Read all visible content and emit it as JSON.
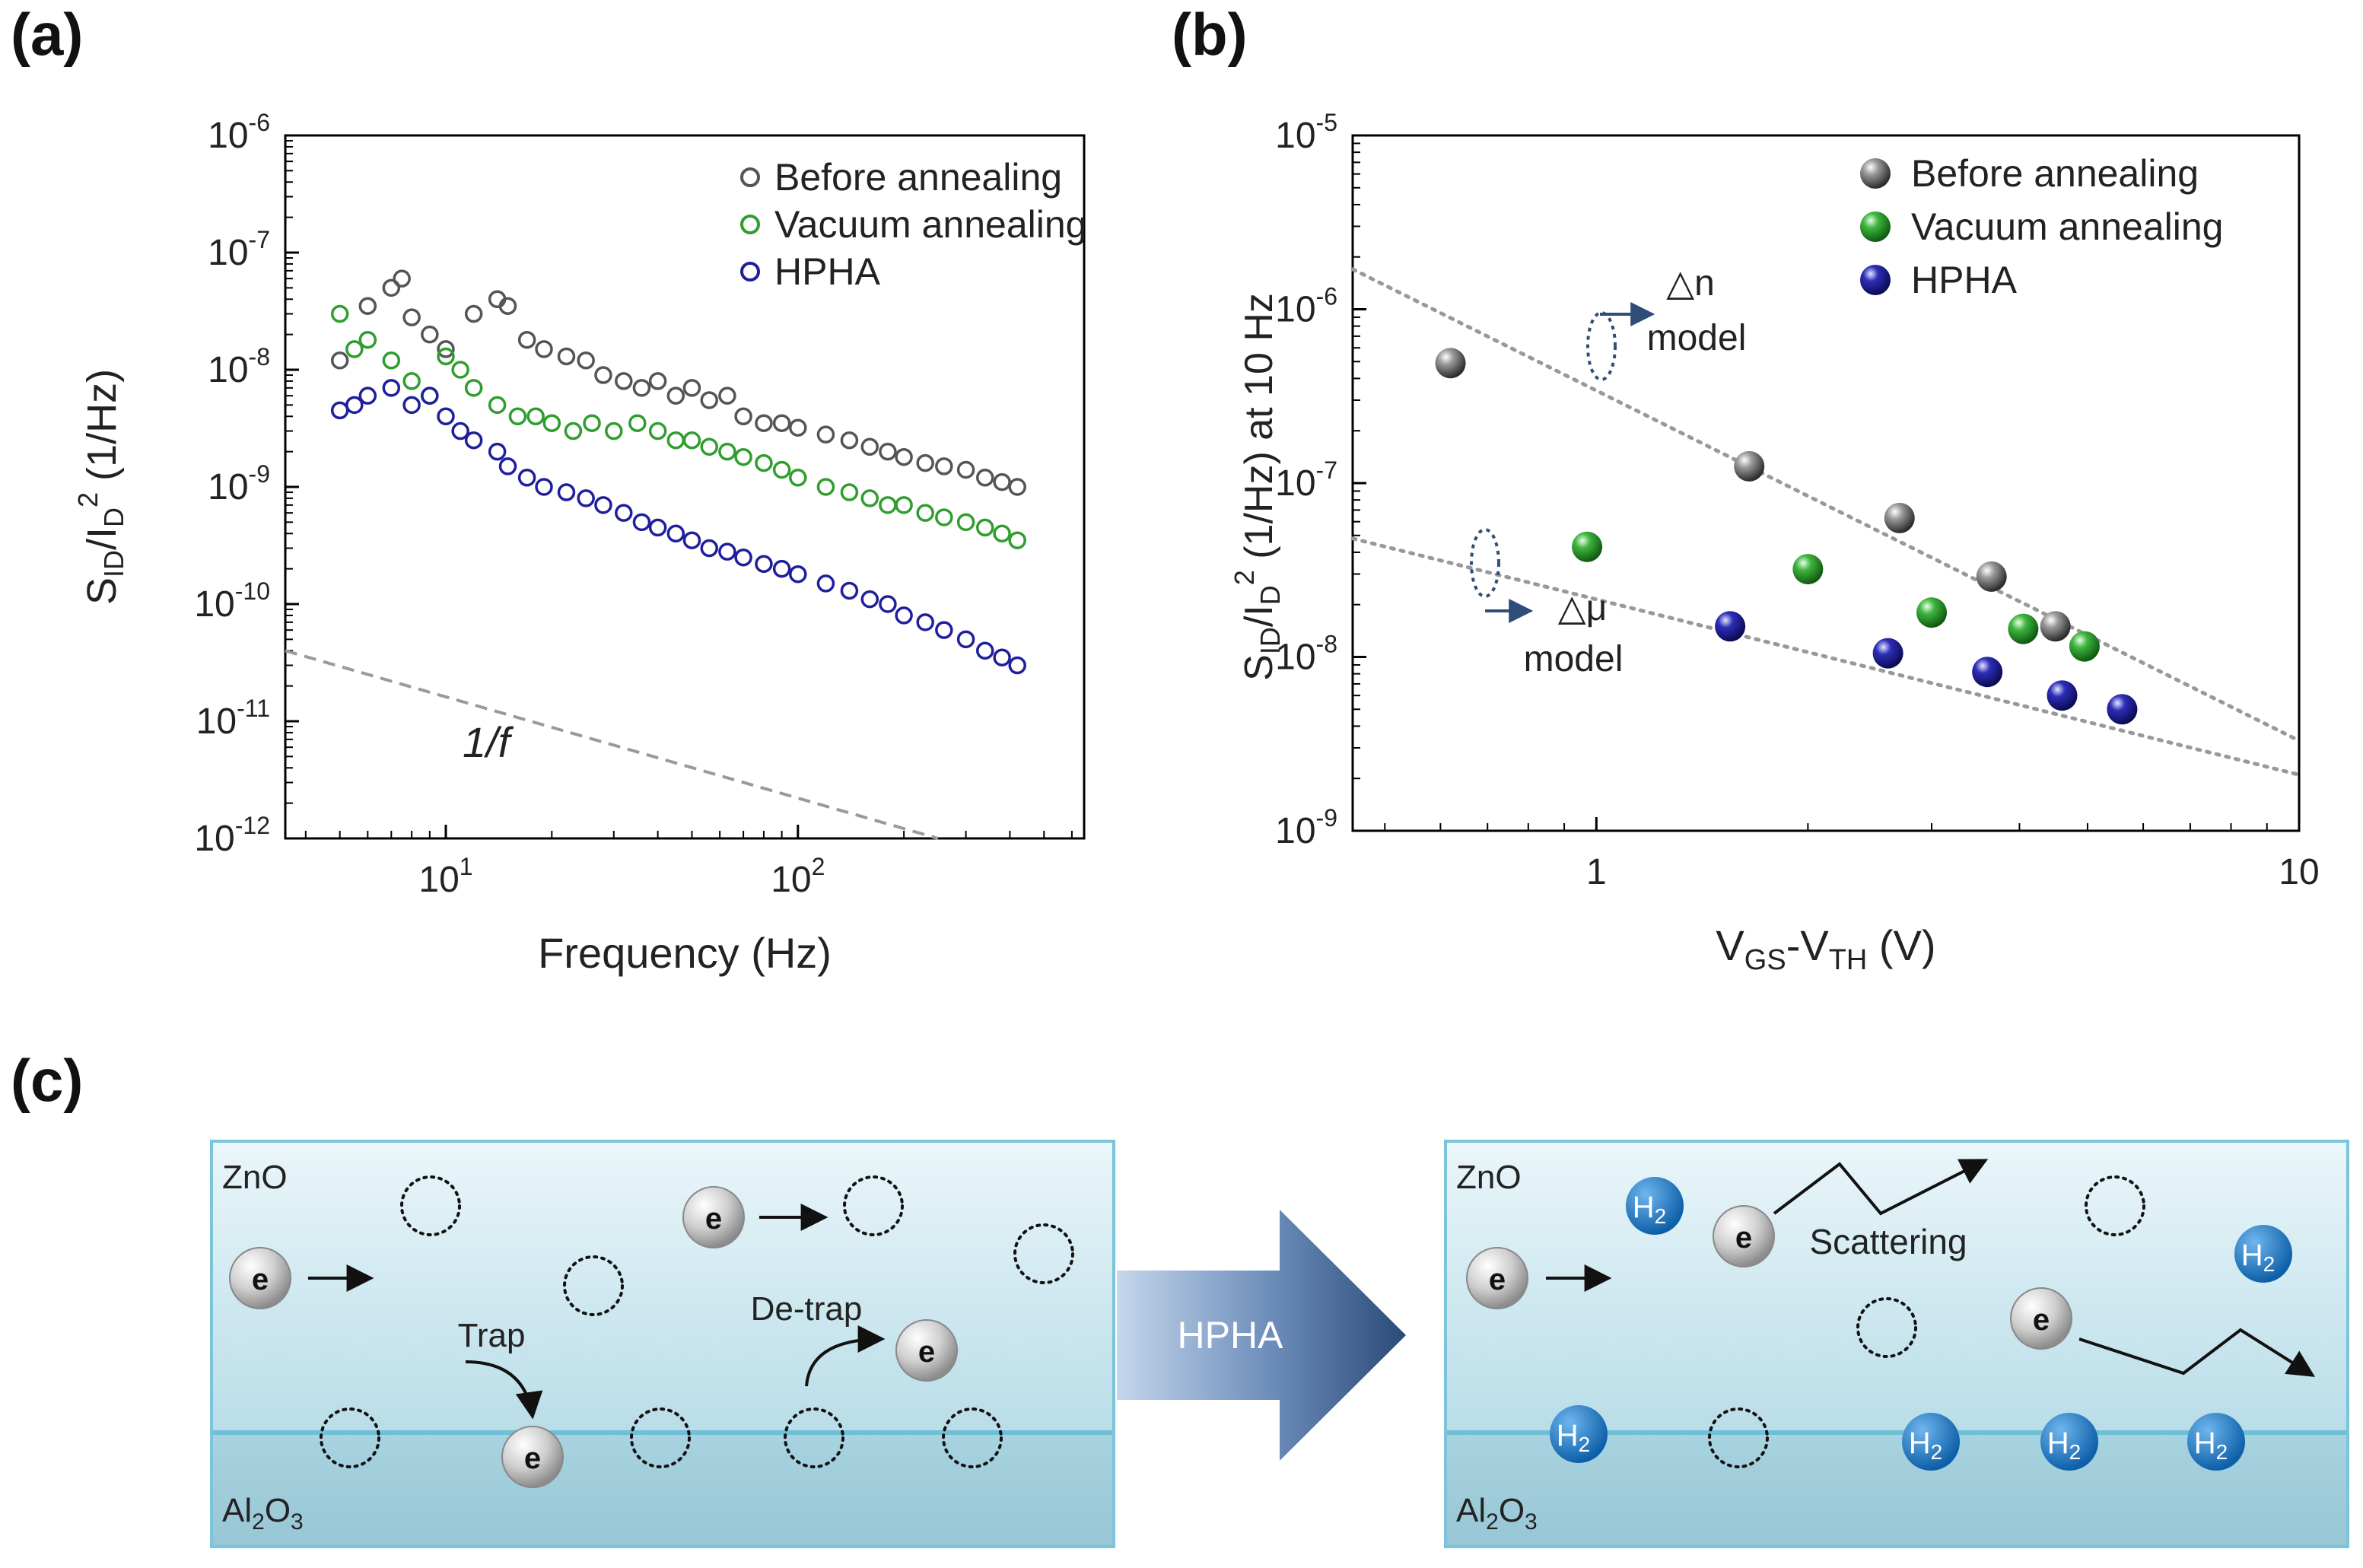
{
  "panels": {
    "a": "(a)",
    "b": "(b)",
    "c": "(c)"
  },
  "colors": {
    "before": "#555555",
    "vacuum": "#2f9e2f",
    "hpha": "#1f1f9e",
    "trend": "#999999",
    "box_fill_top": "#e9f6fa",
    "box_fill_bottom": "#b7dbe7",
    "box_border": "#7cc4da",
    "arrow_dark": "#2f4d78",
    "arrow_light": "#b9cfe7",
    "h2_fill": "#1d77c6"
  },
  "chart_data": [
    {
      "type": "scatter",
      "id": "a",
      "xlabel": "Frequency (Hz)",
      "ylabel_parts": {
        "s": "S",
        "sub1": "ID",
        "mid": "/I",
        "sub2": "D",
        "sup": "2",
        "tail": " (1/Hz)"
      },
      "xscale": "log",
      "yscale": "log",
      "xlim": [
        3.5,
        650
      ],
      "ylim": [
        1e-12,
        1e-06
      ],
      "xticks": [
        {
          "value": 10,
          "base": "10",
          "exp": "1"
        },
        {
          "value": 100,
          "base": "10",
          "exp": "2"
        }
      ],
      "yticks": [
        {
          "value": 1e-06,
          "base": "10",
          "exp": "-6"
        },
        {
          "value": 1e-07,
          "base": "10",
          "exp": "-7"
        },
        {
          "value": 1e-08,
          "base": "10",
          "exp": "-8"
        },
        {
          "value": 1e-09,
          "base": "10",
          "exp": "-9"
        },
        {
          "value": 1e-10,
          "base": "10",
          "exp": "-10"
        },
        {
          "value": 1e-11,
          "base": "10",
          "exp": "-11"
        },
        {
          "value": 1e-12,
          "base": "10",
          "exp": "-12"
        }
      ],
      "legend": [
        "Before annealing",
        "Vacuum annealing",
        "HPHA"
      ],
      "legend_position": "top-right",
      "annotation": "1/f",
      "reference_line": {
        "label": "1/f",
        "x": [
          3.5,
          250
        ],
        "y": [
          4e-11,
          1e-12
        ]
      },
      "series": [
        {
          "name": "Before annealing",
          "marker": "open-circle",
          "x": [
            5,
            6,
            7,
            7.5,
            8,
            9,
            10,
            12,
            14,
            15,
            17,
            19,
            22,
            25,
            28,
            32,
            36,
            40,
            45,
            50,
            56,
            63,
            70,
            80,
            90,
            100,
            120,
            140,
            160,
            180,
            200,
            230,
            260,
            300,
            340,
            380,
            420
          ],
          "y": [
            1.2e-08,
            3.5e-08,
            5e-08,
            6e-08,
            2.8e-08,
            2e-08,
            1.5e-08,
            3e-08,
            4e-08,
            3.5e-08,
            1.8e-08,
            1.5e-08,
            1.3e-08,
            1.2e-08,
            9e-09,
            8e-09,
            7e-09,
            8e-09,
            6e-09,
            7e-09,
            5.5e-09,
            6e-09,
            4e-09,
            3.5e-09,
            3.5e-09,
            3.2e-09,
            2.8e-09,
            2.5e-09,
            2.2e-09,
            2e-09,
            1.8e-09,
            1.6e-09,
            1.5e-09,
            1.4e-09,
            1.2e-09,
            1.1e-09,
            1e-09
          ]
        },
        {
          "name": "Vacuum annealing",
          "marker": "open-circle",
          "x": [
            5,
            5.5,
            6,
            7,
            8,
            9,
            10,
            11,
            12,
            14,
            16,
            18,
            20,
            23,
            26,
            30,
            35,
            40,
            45,
            50,
            56,
            63,
            70,
            80,
            90,
            100,
            120,
            140,
            160,
            180,
            200,
            230,
            260,
            300,
            340,
            380,
            420
          ],
          "y": [
            3e-08,
            1.5e-08,
            1.8e-08,
            1.2e-08,
            8e-09,
            6e-09,
            1.3e-08,
            1e-08,
            7e-09,
            5e-09,
            4e-09,
            4e-09,
            3.5e-09,
            3e-09,
            3.5e-09,
            3e-09,
            3.5e-09,
            3e-09,
            2.5e-09,
            2.5e-09,
            2.2e-09,
            2e-09,
            1.8e-09,
            1.6e-09,
            1.4e-09,
            1.2e-09,
            1e-09,
            9e-10,
            8e-10,
            7e-10,
            7e-10,
            6e-10,
            5.5e-10,
            5e-10,
            4.5e-10,
            4e-10,
            3.5e-10
          ]
        },
        {
          "name": "HPHA",
          "marker": "open-circle",
          "x": [
            5,
            5.5,
            6,
            7,
            8,
            9,
            10,
            11,
            12,
            14,
            15,
            17,
            19,
            22,
            25,
            28,
            32,
            36,
            40,
            45,
            50,
            56,
            63,
            70,
            80,
            90,
            100,
            120,
            140,
            160,
            180,
            200,
            230,
            260,
            300,
            340,
            380,
            420
          ],
          "y": [
            4.5e-09,
            5e-09,
            6e-09,
            7e-09,
            5e-09,
            6e-09,
            4e-09,
            3e-09,
            2.5e-09,
            2e-09,
            1.5e-09,
            1.2e-09,
            1e-09,
            9e-10,
            8e-10,
            7e-10,
            6e-10,
            5e-10,
            4.5e-10,
            4e-10,
            3.5e-10,
            3e-10,
            2.8e-10,
            2.5e-10,
            2.2e-10,
            2e-10,
            1.8e-10,
            1.5e-10,
            1.3e-10,
            1.1e-10,
            1e-10,
            8e-11,
            7e-11,
            6e-11,
            5e-11,
            4e-11,
            3.5e-11,
            3e-11
          ]
        }
      ]
    },
    {
      "type": "scatter",
      "id": "b",
      "xlabel_parts": {
        "v1": "V",
        "sub1": "GS",
        "mid": "-V",
        "sub2": "TH",
        "tail": " (V)"
      },
      "ylabel_parts": {
        "s": "S",
        "sub1": "ID",
        "mid": "/I",
        "sub2": "D",
        "sup": "2",
        "tail": " (1/Hz) at 10 Hz"
      },
      "xscale": "log",
      "yscale": "log",
      "xlim": [
        0.45,
        10
      ],
      "ylim": [
        1e-09,
        1e-05
      ],
      "xticks": [
        {
          "value": 1,
          "label": "1"
        },
        {
          "value": 10,
          "label": "10"
        }
      ],
      "yticks": [
        {
          "value": 1e-05,
          "base": "10",
          "exp": "-5"
        },
        {
          "value": 1e-06,
          "base": "10",
          "exp": "-6"
        },
        {
          "value": 1e-07,
          "base": "10",
          "exp": "-7"
        },
        {
          "value": 1e-08,
          "base": "10",
          "exp": "-8"
        },
        {
          "value": 1e-09,
          "base": "10",
          "exp": "-9"
        }
      ],
      "legend": [
        "Before annealing",
        "Vacuum annealing",
        "HPHA"
      ],
      "legend_position": "top-right",
      "annotations": [
        {
          "line1": "△n",
          "line2": "model"
        },
        {
          "line1": "△μ",
          "line2": "model"
        }
      ],
      "trend_lines": [
        {
          "name": "△n model",
          "x": [
            0.45,
            10
          ],
          "y": [
            1.7e-06,
            3.3e-09
          ]
        },
        {
          "name": "△μ model",
          "x": [
            0.45,
            10
          ],
          "y": [
            4.8e-08,
            2.1e-09
          ]
        }
      ],
      "series": [
        {
          "name": "Before annealing",
          "marker": "filled-sphere",
          "x": [
            0.62,
            1.65,
            2.7,
            3.65,
            4.5
          ],
          "y": [
            4.9e-07,
            1.25e-07,
            6.3e-08,
            2.9e-08,
            1.5e-08
          ]
        },
        {
          "name": "Vacuum annealing",
          "marker": "filled-sphere",
          "x": [
            0.97,
            2.0,
            3.0,
            4.05,
            4.95
          ],
          "y": [
            4.3e-08,
            3.2e-08,
            1.8e-08,
            1.45e-08,
            1.15e-08
          ]
        },
        {
          "name": "HPHA",
          "marker": "filled-sphere",
          "x": [
            1.55,
            2.6,
            3.6,
            4.6,
            5.6
          ],
          "y": [
            1.5e-08,
            1.05e-08,
            8.2e-09,
            6e-09,
            5e-09
          ]
        }
      ]
    }
  ],
  "schematic": {
    "left": {
      "top_label": "ZnO",
      "bottom_label_main": "Al",
      "bottom_label_sub1": "2",
      "bottom_label_mid": "O",
      "bottom_label_sub2": "3",
      "electron": "e",
      "trap_label": "Trap",
      "detrap_label": "De-trap"
    },
    "arrow_label": "HPHA",
    "right": {
      "top_label": "ZnO",
      "bottom_label_main": "Al",
      "bottom_label_sub1": "2",
      "bottom_label_mid": "O",
      "bottom_label_sub2": "3",
      "electron": "e",
      "scattering_label": "Scattering",
      "h2_main": "H",
      "h2_sub": "2"
    }
  }
}
